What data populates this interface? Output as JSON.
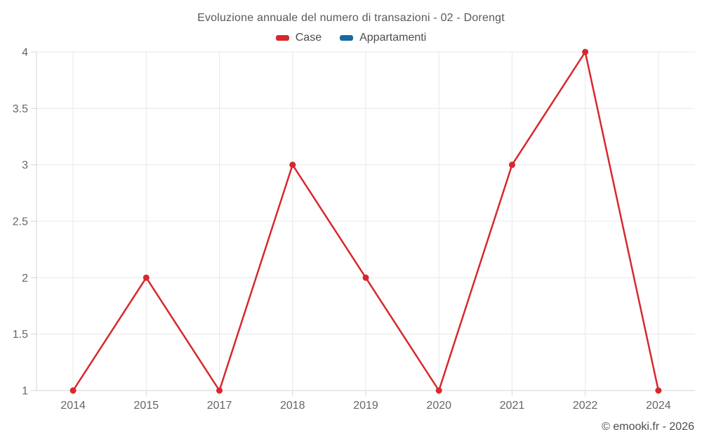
{
  "page": {
    "title": "Evoluzione annuale del numero di transazioni - 02 - Dorengt"
  },
  "footer": {
    "copyright": "© emooki.fr - 2026"
  },
  "chart_data": {
    "type": "line",
    "title": "Evoluzione annuale del numero di transazioni - 02 - Dorengt",
    "categories": [
      "2014",
      "2015",
      "2017",
      "2018",
      "2019",
      "2020",
      "2021",
      "2022",
      "2024"
    ],
    "series": [
      {
        "name": "Case",
        "color": "#d7282d",
        "values": [
          1,
          2,
          1,
          3,
          2,
          1,
          3,
          4,
          1
        ]
      },
      {
        "name": "Appartamenti",
        "color": "#156a9e",
        "values": []
      }
    ],
    "xlabel": "",
    "ylabel": "",
    "ylim": [
      1,
      4
    ],
    "y_ticks": [
      1,
      1.5,
      2,
      2.5,
      3,
      3.5,
      4
    ],
    "grid": true,
    "legend_position": "top",
    "colors": {
      "background": "#ffffff",
      "grid": "#e8e8e8",
      "axis": "#d4d4d4",
      "tick_label": "#666666",
      "title": "#595959",
      "copyright": "#4d4d4d"
    }
  }
}
